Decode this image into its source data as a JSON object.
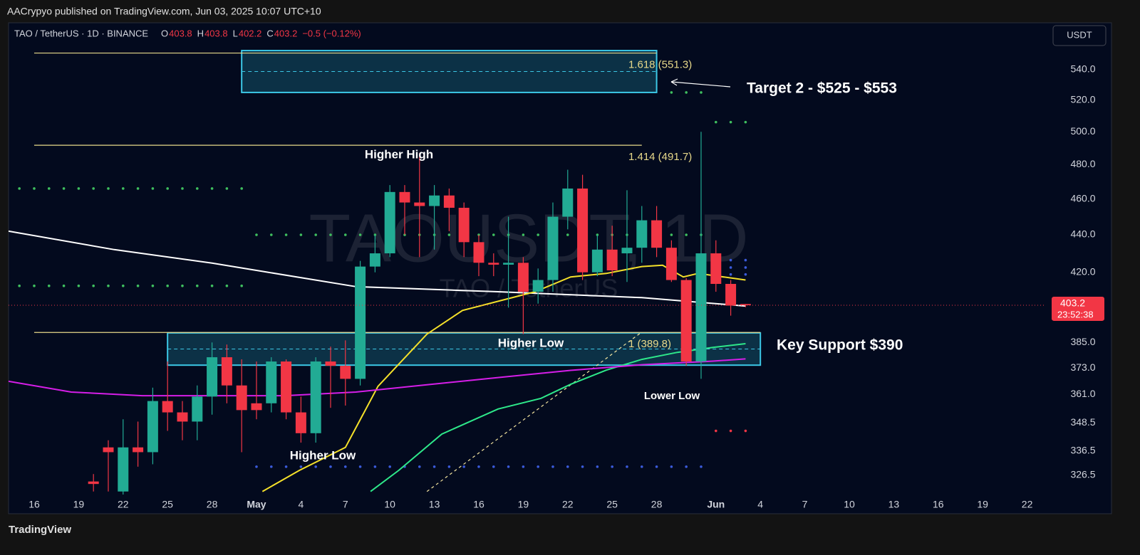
{
  "header": {
    "publisher": "AACrypyo published on TradingView.com, Jun 03, 2025 10:07 UTC+10",
    "symbol": "TAO / TetherUS · 1D · BINANCE",
    "ohlc_labels": [
      "O",
      "H",
      "L",
      "C"
    ],
    "change": "−0.5 (−0.12%)",
    "currency_button": "USDT"
  },
  "footer": {
    "brand": "TradingView"
  },
  "chart_data": {
    "type": "candlestick",
    "watermark": "TAOUSDT, 1D",
    "watermark_sub": "TAO / TetherUS",
    "log_scale": true,
    "grid": false,
    "up_color": "#22ab94",
    "down_color": "#f23645",
    "xlim": [
      -1.73,
      68.27
    ],
    "ylim": [
      318.8,
      572.4
    ],
    "xticks": [
      {
        "value": 0,
        "label": "16"
      },
      {
        "value": 3,
        "label": "19"
      },
      {
        "value": 6,
        "label": "22"
      },
      {
        "value": 9,
        "label": "25"
      },
      {
        "value": 12,
        "label": "28"
      },
      {
        "value": 15,
        "label": "May"
      },
      {
        "value": 18,
        "label": "4"
      },
      {
        "value": 21,
        "label": "7"
      },
      {
        "value": 24,
        "label": "10"
      },
      {
        "value": 27,
        "label": "13"
      },
      {
        "value": 30,
        "label": "16"
      },
      {
        "value": 33,
        "label": "19"
      },
      {
        "value": 36,
        "label": "22"
      },
      {
        "value": 39,
        "label": "25"
      },
      {
        "value": 42,
        "label": "28"
      },
      {
        "value": 46,
        "label": "Jun"
      },
      {
        "value": 49,
        "label": "4"
      },
      {
        "value": 52,
        "label": "7"
      },
      {
        "value": 55,
        "label": "10"
      },
      {
        "value": 58,
        "label": "13"
      },
      {
        "value": 61,
        "label": "16"
      },
      {
        "value": 64,
        "label": "19"
      },
      {
        "value": 67,
        "label": "22"
      }
    ],
    "yticks": [
      {
        "value": 540,
        "label": "540.0"
      },
      {
        "value": 520,
        "label": "520.0"
      },
      {
        "value": 500,
        "label": "500.0"
      },
      {
        "value": 480,
        "label": "480.0"
      },
      {
        "value": 460,
        "label": "460.0"
      },
      {
        "value": 440,
        "label": "440.0"
      },
      {
        "value": 420,
        "label": "420.0"
      },
      {
        "value": 385,
        "label": "385.0"
      },
      {
        "value": 373,
        "label": "373.0"
      },
      {
        "value": 361,
        "label": "361.0"
      },
      348.5,
      336.5,
      326.5
    ],
    "candles": [
      {
        "x": 4,
        "open": 324,
        "high": 327,
        "low": 320,
        "close": 323
      },
      {
        "x": 5,
        "open": 338,
        "high": 341,
        "low": 320,
        "close": 336
      },
      {
        "x": 6,
        "open": 320,
        "high": 350,
        "low": 318,
        "close": 338
      },
      {
        "x": 7,
        "open": 338,
        "high": 349,
        "low": 330,
        "close": 336
      },
      {
        "x": 8,
        "open": 336,
        "high": 364,
        "low": 331,
        "close": 358
      },
      {
        "x": 9,
        "open": 358,
        "high": 376,
        "low": 345,
        "close": 353
      },
      {
        "x": 10,
        "open": 353,
        "high": 358,
        "low": 341,
        "close": 349
      },
      {
        "x": 11,
        "open": 349,
        "high": 365,
        "low": 341,
        "close": 360
      },
      {
        "x": 12,
        "open": 360,
        "high": 385,
        "low": 352,
        "close": 378
      },
      {
        "x": 13,
        "open": 378,
        "high": 384,
        "low": 357,
        "close": 365
      },
      {
        "x": 14,
        "open": 365,
        "high": 377,
        "low": 336,
        "close": 354
      },
      {
        "x": 15,
        "open": 357,
        "high": 376,
        "low": 350,
        "close": 354
      },
      {
        "x": 16,
        "open": 357,
        "high": 378,
        "low": 353,
        "close": 376
      },
      {
        "x": 17,
        "open": 376,
        "high": 377,
        "low": 350,
        "close": 353
      },
      {
        "x": 18,
        "open": 353,
        "high": 360,
        "low": 340,
        "close": 344
      },
      {
        "x": 19,
        "open": 344,
        "high": 378,
        "low": 340,
        "close": 376
      },
      {
        "x": 20,
        "open": 376,
        "high": 383,
        "low": 355,
        "close": 374
      },
      {
        "x": 21,
        "open": 374,
        "high": 386,
        "low": 356,
        "close": 368
      },
      {
        "x": 22,
        "open": 368,
        "high": 426,
        "low": 365,
        "close": 423
      },
      {
        "x": 23,
        "open": 423,
        "high": 440,
        "low": 420,
        "close": 430
      },
      {
        "x": 24,
        "open": 430,
        "high": 468,
        "low": 428,
        "close": 464
      },
      {
        "x": 25,
        "open": 464,
        "high": 468,
        "low": 440,
        "close": 458
      },
      {
        "x": 26,
        "open": 458,
        "high": 487,
        "low": 428,
        "close": 456
      },
      {
        "x": 27,
        "open": 456,
        "high": 468,
        "low": 432,
        "close": 462
      },
      {
        "x": 28,
        "open": 462,
        "high": 466,
        "low": 442,
        "close": 455
      },
      {
        "x": 29,
        "open": 455,
        "high": 458,
        "low": 428,
        "close": 436
      },
      {
        "x": 30,
        "open": 436,
        "high": 440,
        "low": 418,
        "close": 425
      },
      {
        "x": 31,
        "open": 425,
        "high": 430,
        "low": 418,
        "close": 424
      },
      {
        "x": 32,
        "open": 424,
        "high": 450,
        "low": 402,
        "close": 425
      },
      {
        "x": 33,
        "open": 425,
        "high": 428,
        "low": 389,
        "close": 410
      },
      {
        "x": 34,
        "open": 410,
        "high": 422,
        "low": 404,
        "close": 416
      },
      {
        "x": 35,
        "open": 416,
        "high": 458,
        "low": 410,
        "close": 450
      },
      {
        "x": 36,
        "open": 450,
        "high": 477,
        "low": 443,
        "close": 466
      },
      {
        "x": 37,
        "open": 466,
        "high": 474,
        "low": 416,
        "close": 420
      },
      {
        "x": 38,
        "open": 420,
        "high": 440,
        "low": 418,
        "close": 432
      },
      {
        "x": 39,
        "open": 432,
        "high": 445,
        "low": 418,
        "close": 421
      },
      {
        "x": 40,
        "open": 430,
        "high": 465,
        "low": 415,
        "close": 433
      },
      {
        "x": 41,
        "open": 433,
        "high": 456,
        "low": 425,
        "close": 448
      },
      {
        "x": 42,
        "open": 448,
        "high": 456,
        "low": 428,
        "close": 433
      },
      {
        "x": 43,
        "open": 433,
        "high": 437,
        "low": 415,
        "close": 416
      },
      {
        "x": 44,
        "open": 416,
        "high": 417,
        "low": 374,
        "close": 376
      },
      {
        "x": 45,
        "open": 376,
        "high": 500,
        "low": 368,
        "close": 430
      },
      {
        "x": 46,
        "open": 430,
        "high": 437,
        "low": 410,
        "close": 414
      },
      {
        "x": 47,
        "open": 414,
        "high": 416,
        "low": 398,
        "close": 403
      },
      {
        "x": 48,
        "open": 403.8,
        "high": 403.8,
        "low": 402.2,
        "close": 403.2
      }
    ],
    "countdown": "23:52:38",
    "lines": [
      {
        "color": "#ffffff",
        "x": [
          -1.73,
          5.4,
          12,
          21.7,
          31.3,
          41,
          48
        ],
        "values": [
          442,
          432,
          424.8,
          412.6,
          410,
          407,
          402.8
        ]
      },
      {
        "color": "#f5e12a",
        "x": [
          15.4,
          17.9,
          21,
          23.2,
          26.5,
          28.9,
          33.8,
          36.2,
          38.6,
          41,
          42.4,
          43.8,
          44.8,
          48
        ],
        "values": [
          320,
          328.5,
          338,
          364.6,
          389,
          400.6,
          410,
          417.6,
          419.4,
          423,
          423.7,
          417.6,
          419.4,
          416
        ]
      },
      {
        "color": "#2ee88a",
        "x": [
          22.7,
          24.6,
          27.5,
          31.3,
          34.2,
          36.2,
          38.6,
          41,
          43.4,
          45.8,
          48
        ],
        "values": [
          320,
          328.5,
          343.6,
          354.5,
          359.2,
          365.5,
          372,
          377,
          380.3,
          382.6,
          384.4
        ]
      },
      {
        "color": "#d61ee8",
        "x": [
          -1.73,
          2.5,
          7.3,
          12.1,
          16.9,
          21.7,
          26.5,
          31.3,
          36.2,
          41,
          45.8,
          48
        ],
        "values": [
          366.9,
          362,
          360.4,
          360.4,
          360.4,
          362,
          365.3,
          368.6,
          371.9,
          374.5,
          376.2,
          377.2
        ]
      }
    ],
    "trendline": {
      "color": "#f5e6a0",
      "x": [
        26.5,
        41
      ],
      "values": [
        320,
        390
      ]
    },
    "zones": [
      {
        "x": [
          14,
          42
        ],
        "low": 525,
        "high": 553
      },
      {
        "x": [
          9,
          49
        ],
        "low": 374.3,
        "high": 389.6
      }
    ],
    "fib_levels": [
      {
        "label": "1.618 (551.3)",
        "value": 551.3,
        "x": [
          0,
          42
        ]
      },
      {
        "label": "1.414 (491.7)",
        "value": 491.7,
        "x": [
          0,
          41
        ]
      },
      {
        "label": "1 (389.8)",
        "value": 389.8,
        "x": [
          0,
          49
        ]
      }
    ],
    "dot_levels": [
      {
        "color": "#3fbf5f",
        "value": 466,
        "x": [
          -1,
          14
        ]
      },
      {
        "color": "#3fbf5f",
        "value": 413,
        "x": [
          -1,
          14
        ]
      },
      {
        "color": "#3fbf5f",
        "value": 440,
        "x": [
          15,
          45
        ]
      },
      {
        "color": "#3b5bdb",
        "value": 330,
        "x": [
          15,
          45
        ]
      },
      {
        "color": "#3fbf5f",
        "value": 525,
        "x": [
          43,
          45
        ]
      },
      {
        "color": "#3fbf5f",
        "value": 506,
        "x": [
          46,
          48
        ]
      },
      {
        "color": "#3b5bdb",
        "value": 426.4,
        "x": [
          46,
          48
        ]
      },
      {
        "color": "#3b5bdb",
        "value": 422.5,
        "x": [
          46,
          48
        ]
      },
      {
        "color": "#3b5bdb",
        "value": 418.9,
        "x": [
          46,
          48
        ]
      },
      {
        "color": "#f23645",
        "value": 345,
        "x": [
          46,
          48
        ]
      }
    ],
    "annotations": [
      "Higher High",
      "Higher Low",
      "Higher Low",
      "Lower Low",
      "Target 2 - $525 - $553",
      "Key Support $390"
    ]
  }
}
